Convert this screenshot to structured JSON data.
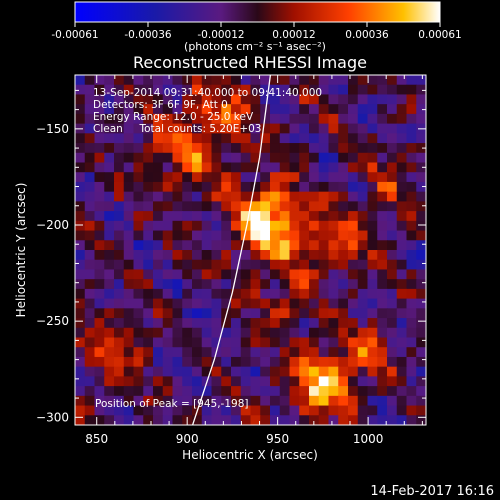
{
  "chart_data": {
    "type": "heatmap",
    "title": "Reconstructed RHESSI Image",
    "xlabel": "Heliocentric X (arcsec)",
    "ylabel": "Heliocentric Y (arcsec)",
    "xlim": [
      838,
      1032
    ],
    "ylim": [
      -304,
      -122
    ],
    "x_ticks": [
      850,
      900,
      950,
      1000
    ],
    "y_ticks": [
      -150,
      -200,
      -250,
      -300
    ],
    "colorbar": {
      "label": "(photons cm⁻² s⁻¹ asec⁻²)",
      "range": [
        -0.00061,
        0.00061
      ],
      "ticks": [
        "-0.00061",
        "-0.00036",
        "-0.00012",
        "0.00012",
        "0.00036",
        "0.00061"
      ]
    },
    "annotations": [
      "13-Sep-2014 09:31:40.000 to 09:41:40.000",
      "Detectors: 3F 6F 9F, Att 0",
      "Energy Range: 12.0 - 25.0 keV",
      "Clean     Total counts: 5.20E+03"
    ],
    "peak_label": "Position of Peak = [945,-198]",
    "peak": [
      945,
      -198
    ],
    "sources": [
      {
        "x": 945,
        "y": -198,
        "amp": 1.0,
        "sigma": 14
      },
      {
        "x": 982,
        "y": -210,
        "amp": 0.55,
        "sigma": 12
      },
      {
        "x": 975,
        "y": -283,
        "amp": 0.85,
        "sigma": 12
      },
      {
        "x": 1000,
        "y": -265,
        "amp": 0.4,
        "sigma": 10
      },
      {
        "x": 900,
        "y": -160,
        "amp": 0.45,
        "sigma": 16
      },
      {
        "x": 920,
        "y": -140,
        "amp": 0.4,
        "sigma": 12
      },
      {
        "x": 860,
        "y": -265,
        "amp": 0.35,
        "sigma": 14
      },
      {
        "x": 955,
        "y": -240,
        "amp": 0.35,
        "sigma": 12
      },
      {
        "x": 1010,
        "y": -175,
        "amp": 0.3,
        "sigma": 12
      }
    ],
    "limb_curve": [
      [
        903,
        -304
      ],
      [
        915,
        -270
      ],
      [
        925,
        -235
      ],
      [
        933,
        -200
      ],
      [
        940,
        -165
      ],
      [
        946,
        -122
      ]
    ]
  },
  "footer": {
    "timestamp": "14-Feb-2017 16:16"
  }
}
